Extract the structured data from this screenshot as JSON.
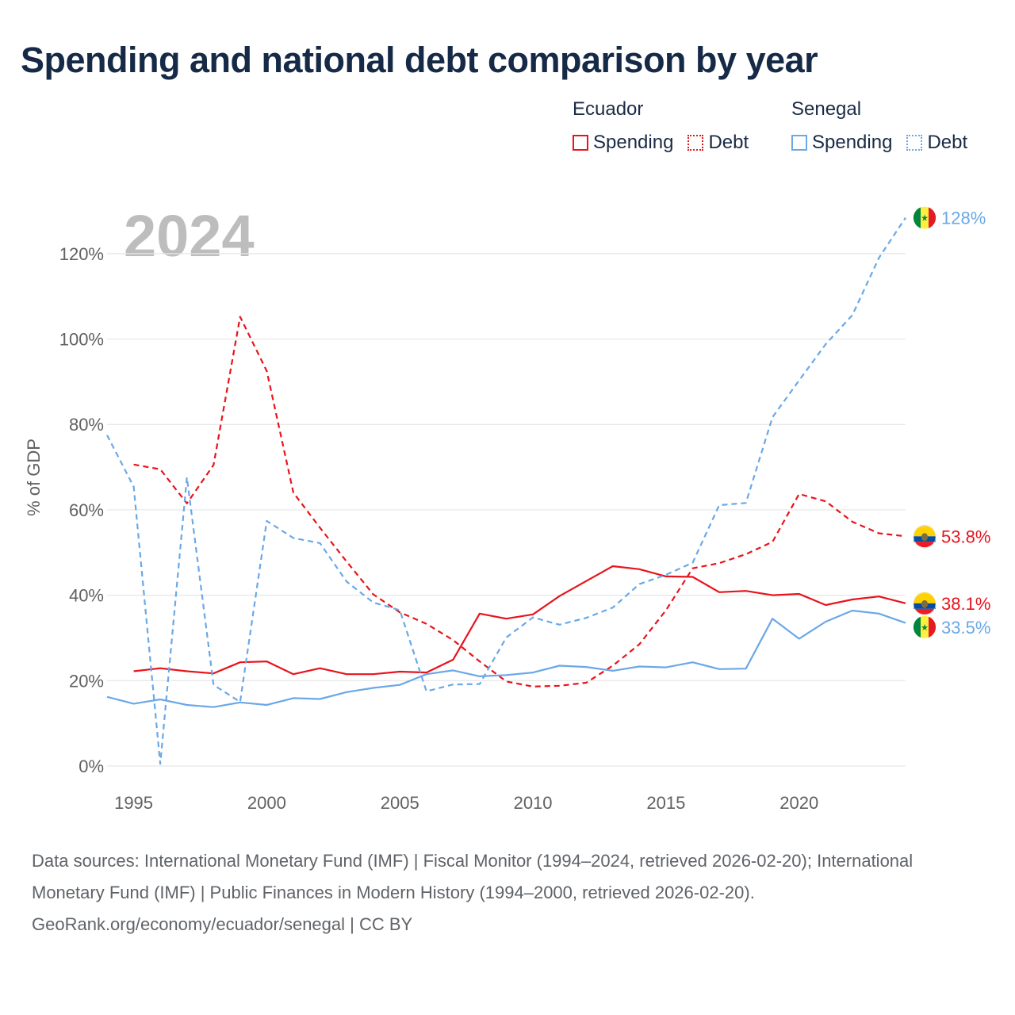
{
  "title": "Spending and national debt comparison by year",
  "legend": {
    "groups": [
      {
        "name": "Ecuador",
        "color": "#e8131c",
        "items": [
          {
            "label": "Spending",
            "style": "solid"
          },
          {
            "label": "Debt",
            "style": "dotted"
          }
        ]
      },
      {
        "name": "Senegal",
        "color": "#6aa8e6",
        "items": [
          {
            "label": "Spending",
            "style": "solid"
          },
          {
            "label": "Debt",
            "style": "dotted"
          }
        ]
      }
    ]
  },
  "chart_data": {
    "type": "line",
    "title": "Spending and national debt comparison by year",
    "current_year": "2024",
    "xlabel": "",
    "ylabel": "% of GDP",
    "xlim": [
      1994,
      2024
    ],
    "ylim": [
      0,
      130
    ],
    "x_ticks": [
      1995,
      2000,
      2005,
      2010,
      2015,
      2020
    ],
    "y_ticks": [
      {
        "value": 0,
        "label": "0%"
      },
      {
        "value": 20,
        "label": "20%"
      },
      {
        "value": 40,
        "label": "40%"
      },
      {
        "value": 60,
        "label": "60%"
      },
      {
        "value": 80,
        "label": "80%"
      },
      {
        "value": 100,
        "label": "100%"
      },
      {
        "value": 120,
        "label": "120%"
      }
    ],
    "grid": true,
    "series": [
      {
        "name": "Ecuador Debt",
        "country": "Ecuador",
        "metric": "Debt",
        "color": "#e8131c",
        "style": "dashed",
        "end_label": "53.8%",
        "flag": "ecuador-flag-icon",
        "x": [
          1995,
          1996,
          1997,
          1998,
          1999,
          2000,
          2001,
          2002,
          2003,
          2004,
          2005,
          2006,
          2007,
          2008,
          2009,
          2010,
          2011,
          2012,
          2013,
          2014,
          2015,
          2016,
          2017,
          2018,
          2019,
          2020,
          2021,
          2022,
          2023,
          2024
        ],
        "values": [
          70.6,
          69.5,
          61.5,
          70.5,
          105.2,
          92.5,
          64.0,
          55.8,
          47.9,
          40.2,
          36.0,
          33.3,
          29.5,
          24.5,
          19.8,
          18.6,
          18.8,
          19.5,
          23.5,
          28.5,
          36.5,
          46.3,
          47.5,
          49.6,
          52.5,
          63.7,
          62.0,
          57.2,
          54.5,
          53.8
        ]
      },
      {
        "name": "Ecuador Spending",
        "country": "Ecuador",
        "metric": "Spending",
        "color": "#e8131c",
        "style": "solid",
        "end_label": "38.1%",
        "flag": "ecuador-flag-icon",
        "x": [
          1995,
          1996,
          1997,
          1998,
          1999,
          2000,
          2001,
          2002,
          2003,
          2004,
          2005,
          2006,
          2007,
          2008,
          2009,
          2010,
          2011,
          2012,
          2013,
          2014,
          2015,
          2016,
          2017,
          2018,
          2019,
          2020,
          2021,
          2022,
          2023,
          2024
        ],
        "values": [
          22.2,
          22.9,
          22.2,
          21.7,
          24.3,
          24.5,
          21.5,
          22.9,
          21.5,
          21.5,
          22.1,
          21.9,
          24.9,
          35.7,
          34.5,
          35.5,
          39.8,
          43.3,
          46.8,
          46.1,
          44.4,
          44.3,
          40.7,
          41.0,
          40.0,
          40.3,
          37.7,
          39.0,
          39.7,
          38.1
        ]
      },
      {
        "name": "Senegal Debt",
        "country": "Senegal",
        "metric": "Debt",
        "color": "#6aa8e6",
        "style": "dashed",
        "end_label": "128%",
        "flag": "senegal-flag-icon",
        "x": [
          1994,
          1995,
          1996,
          1997,
          1998,
          1999,
          2000,
          2001,
          2002,
          2003,
          2004,
          2005,
          2006,
          2007,
          2008,
          2009,
          2010,
          2011,
          2012,
          2013,
          2014,
          2015,
          2016,
          2017,
          2018,
          2019,
          2020,
          2021,
          2022,
          2023,
          2024
        ],
        "values": [
          77.5,
          65.4,
          0.5,
          67.6,
          19.0,
          15.0,
          57.4,
          53.4,
          52.2,
          43.2,
          38.3,
          36.5,
          17.5,
          19.1,
          19.2,
          30.1,
          34.8,
          33.1,
          34.7,
          37.1,
          42.6,
          44.8,
          47.6,
          61.1,
          61.6,
          81.7,
          90.3,
          98.8,
          105.6,
          119.0,
          128.4
        ]
      },
      {
        "name": "Senegal Spending",
        "country": "Senegal",
        "metric": "Spending",
        "color": "#6aa8e6",
        "style": "solid",
        "end_label": "33.5%",
        "flag": "senegal-flag-icon",
        "x": [
          1994,
          1995,
          1996,
          1997,
          1998,
          1999,
          2000,
          2001,
          2002,
          2003,
          2004,
          2005,
          2006,
          2007,
          2008,
          2009,
          2010,
          2011,
          2012,
          2013,
          2014,
          2015,
          2016,
          2017,
          2018,
          2019,
          2020,
          2021,
          2022,
          2023,
          2024
        ],
        "values": [
          16.2,
          14.6,
          15.6,
          14.3,
          13.8,
          14.9,
          14.3,
          15.9,
          15.7,
          17.3,
          18.3,
          19.0,
          21.5,
          22.4,
          21.0,
          21.3,
          21.9,
          23.5,
          23.2,
          22.3,
          23.3,
          23.1,
          24.3,
          22.7,
          22.8,
          34.5,
          29.8,
          33.8,
          36.4,
          35.7,
          33.5
        ]
      }
    ]
  },
  "footer": {
    "sources": "Data sources: International Monetary Fund (IMF) | Fiscal Monitor (1994–2024, retrieved 2026-02-20); International Monetary Fund (IMF) | Public Finances in Modern History (1994–2000, retrieved 2026-02-20).",
    "credit": "GeoRank.org/economy/ecuador/senegal | CC BY"
  }
}
